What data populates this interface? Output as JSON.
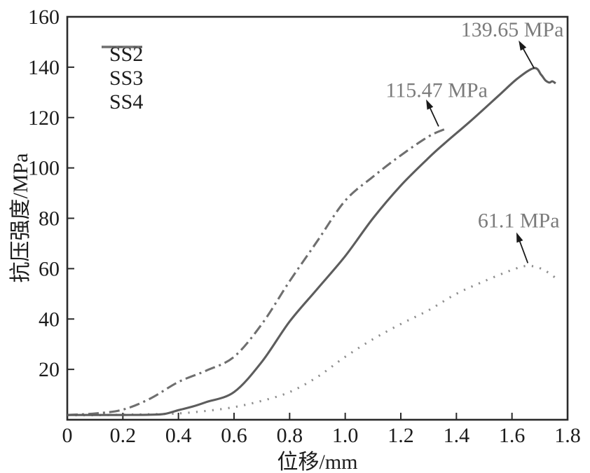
{
  "chart_data": {
    "type": "line",
    "title": "",
    "xlabel": "位移/mm",
    "ylabel": "抗压强度/MPa",
    "xlim": [
      0,
      1.8
    ],
    "ylim": [
      0,
      160
    ],
    "xticks": [
      0,
      0.2,
      0.4,
      0.6,
      0.8,
      1.0,
      1.2,
      1.4,
      1.6,
      1.8
    ],
    "xtick_labels": [
      "0",
      "0.2",
      "0.4",
      "0.6",
      "0.8",
      "1.0",
      "1.2",
      "1.4",
      "1.6",
      "1.8"
    ],
    "yticks": [
      20,
      40,
      60,
      80,
      100,
      120,
      140,
      160
    ],
    "ytick_labels": [
      "20",
      "40",
      "60",
      "80",
      "100",
      "120",
      "140",
      "160"
    ],
    "grid": false,
    "legend": {
      "position": "upper-left-inside",
      "entries": [
        "SS2",
        "SS3",
        "SS4"
      ]
    },
    "colors": {
      "axis": "#2b2b2b",
      "tick_label": "#1c1c1c",
      "annotation_text": "#7b7b7b",
      "arrow": "#1a1a1a"
    },
    "series": [
      {
        "name": "SS2",
        "line_style": "dotted",
        "color": "#8f8f8f",
        "peak_label": "61.1 MPa",
        "x": [
          0,
          0.1,
          0.2,
          0.3,
          0.4,
          0.5,
          0.6,
          0.7,
          0.8,
          0.9,
          1.0,
          1.1,
          1.2,
          1.3,
          1.4,
          1.5,
          1.6,
          1.655,
          1.7,
          1.73,
          1.755
        ],
        "y": [
          1.8,
          1.8,
          2.0,
          2.2,
          2.5,
          3.5,
          5,
          7.5,
          11,
          17,
          25,
          32,
          38,
          43.5,
          50,
          55,
          59.5,
          61.1,
          60.2,
          58.5,
          56.5
        ]
      },
      {
        "name": "SS3",
        "line_style": "solid",
        "color": "#5d5d5d",
        "peak_label": "139.65 MPa",
        "x": [
          0,
          0.1,
          0.2,
          0.3,
          0.35,
          0.4,
          0.45,
          0.5,
          0.6,
          0.7,
          0.8,
          0.9,
          1.0,
          1.1,
          1.2,
          1.3,
          1.36,
          1.45,
          1.55,
          1.62,
          1.68,
          1.705,
          1.72,
          1.735,
          1.745,
          1.757
        ],
        "y": [
          1.9,
          1.9,
          1.9,
          2.0,
          2.3,
          3.8,
          5.2,
          7,
          11,
          23,
          39,
          52,
          65,
          80,
          93,
          104,
          110,
          118.5,
          128.5,
          135.5,
          139.65,
          137,
          134.8,
          133.9,
          134.4,
          133.6
        ]
      },
      {
        "name": "SS4",
        "line_style": "dashdot",
        "color": "#6f6f6f",
        "peak_label": "115.47 MPa",
        "x": [
          0,
          0.1,
          0.2,
          0.3,
          0.4,
          0.5,
          0.6,
          0.7,
          0.8,
          0.9,
          1.0,
          1.1,
          1.2,
          1.3,
          1.36
        ],
        "y": [
          1.9,
          2.5,
          4,
          8.5,
          15,
          19.5,
          25,
          38,
          55,
          71,
          87,
          96.5,
          105,
          112.5,
          115.47
        ]
      }
    ],
    "annotations": [
      {
        "label": "139.65 MPa",
        "series": "SS3",
        "arrow_tail": [
          1.68,
          139.5
        ],
        "arrow_head": [
          1.624,
          150.6
        ],
        "text_center": [
          1.601,
          155.0
        ]
      },
      {
        "label": "115.47 MPa",
        "series": "SS4",
        "arrow_tail": [
          1.336,
          116.5
        ],
        "arrow_head": [
          1.291,
          127.2
        ],
        "text_center": [
          1.329,
          130.9
        ]
      },
      {
        "label": "61.1 MPa",
        "series": "SS2",
        "arrow_tail": [
          1.657,
          62.2
        ],
        "arrow_head": [
          1.616,
          74.4
        ],
        "text_center": [
          1.624,
          79.2
        ]
      }
    ]
  }
}
